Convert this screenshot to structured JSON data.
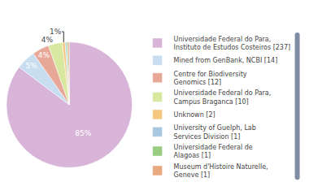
{
  "chart_data": {
    "type": "pie",
    "categories": [
      "Universidade Federal do Para,\nInstituto de Estudos Costeiros [237]",
      "Mined from GenBank, NCBI [14]",
      "Centre for Biodiversity\nGenomics [12]",
      "Universidade Federal do Para,\nCampus Braganca [10]",
      "Unknown [2]",
      "University of Guelph, Lab\nServices Division [1]",
      "Universidade Federal de\nAlagoas [1]",
      "Museum d'Histoire Naturelle,\nGeneve [1]"
    ],
    "values": [
      85.25,
      5.04,
      4.32,
      3.6,
      0.72,
      0.36,
      0.36,
      0.36
    ],
    "value_labels": [
      "85%",
      "5%",
      "4%",
      "4%",
      "1%",
      null,
      null,
      null
    ],
    "colors": [
      "#D8B4D8",
      "#C8DDF0",
      "#E8A898",
      "#D8E8A0",
      "#F4C880",
      "#A8C8E0",
      "#98CC80",
      "#E8A880"
    ],
    "data_labels": true,
    "legend": "right"
  }
}
